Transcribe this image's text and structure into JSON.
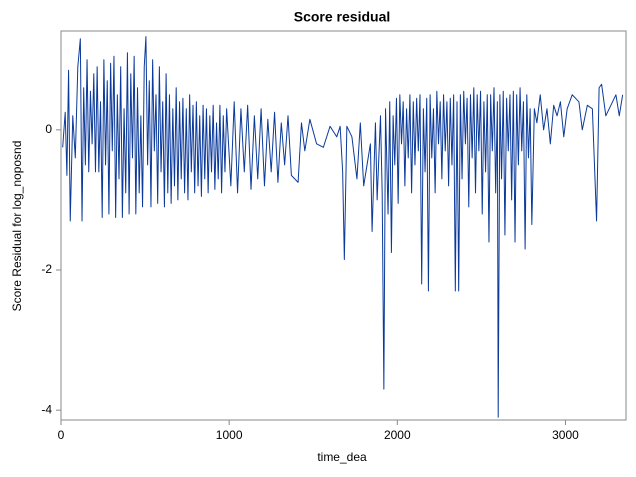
{
  "chart_data": {
    "type": "line",
    "title": "Score residual",
    "x_label": "time_dea",
    "y_label": "Score Residual for log_noposnd",
    "xlim": [
      0,
      3360
    ],
    "ylim": [
      -4.14,
      1.41
    ],
    "xticks": [
      0,
      1000,
      2000,
      3000
    ],
    "yticks": [
      -4,
      -2,
      0
    ],
    "grid": false,
    "series": [
      {
        "name": "Score Residual for log_noposnd",
        "color": "#0b3a9b",
        "x": [
          10,
          25,
          35,
          45,
          55,
          70,
          85,
          100,
          115,
          125,
          135,
          145,
          155,
          165,
          175,
          185,
          195,
          205,
          215,
          225,
          235,
          245,
          255,
          265,
          275,
          285,
          295,
          305,
          315,
          325,
          335,
          345,
          355,
          365,
          375,
          385,
          395,
          405,
          415,
          425,
          435,
          445,
          455,
          465,
          475,
          485,
          495,
          505,
          515,
          525,
          535,
          545,
          555,
          565,
          575,
          585,
          595,
          605,
          615,
          625,
          635,
          645,
          655,
          665,
          675,
          685,
          695,
          705,
          715,
          725,
          735,
          745,
          755,
          765,
          775,
          785,
          795,
          805,
          815,
          825,
          835,
          845,
          855,
          865,
          875,
          885,
          895,
          905,
          915,
          925,
          935,
          945,
          955,
          965,
          975,
          985,
          1010,
          1030,
          1050,
          1070,
          1090,
          1110,
          1130,
          1150,
          1170,
          1190,
          1210,
          1230,
          1250,
          1270,
          1290,
          1310,
          1330,
          1350,
          1370,
          1390,
          1410,
          1430,
          1450,
          1480,
          1520,
          1560,
          1600,
          1640,
          1660,
          1675,
          1685,
          1700,
          1730,
          1760,
          1780,
          1800,
          1820,
          1840,
          1850,
          1870,
          1880,
          1900,
          1910,
          1920,
          1930,
          1945,
          1955,
          1965,
          1975,
          1985,
          1995,
          2005,
          2015,
          2025,
          2035,
          2045,
          2055,
          2065,
          2075,
          2085,
          2095,
          2105,
          2115,
          2125,
          2135,
          2145,
          2155,
          2165,
          2175,
          2185,
          2195,
          2205,
          2215,
          2225,
          2235,
          2245,
          2255,
          2265,
          2275,
          2285,
          2295,
          2305,
          2315,
          2325,
          2335,
          2345,
          2355,
          2365,
          2375,
          2385,
          2395,
          2405,
          2415,
          2425,
          2435,
          2445,
          2455,
          2465,
          2475,
          2485,
          2495,
          2505,
          2515,
          2525,
          2535,
          2545,
          2555,
          2565,
          2575,
          2585,
          2595,
          2600,
          2610,
          2620,
          2630,
          2640,
          2650,
          2660,
          2670,
          2680,
          2690,
          2700,
          2710,
          2720,
          2730,
          2740,
          2750,
          2760,
          2770,
          2780,
          2790,
          2800,
          2815,
          2830,
          2850,
          2870,
          2890,
          2910,
          2930,
          2950,
          2970,
          2990,
          3010,
          3040,
          3080,
          3100,
          3130,
          3160,
          3185,
          3200,
          3215,
          3240,
          3300,
          3320,
          3340
        ],
        "values": [
          -0.25,
          0.25,
          -0.65,
          0.85,
          -1.3,
          0.2,
          -0.4,
          0.9,
          1.3,
          -1.3,
          0.6,
          -0.5,
          1.0,
          -0.6,
          0.55,
          -0.2,
          0.8,
          -0.6,
          0.9,
          -0.6,
          0.4,
          -1.25,
          1.0,
          -0.5,
          0.7,
          -1.2,
          0.95,
          -0.3,
          1.05,
          -1.25,
          0.5,
          -0.7,
          0.9,
          -1.25,
          0.3,
          -0.9,
          1.1,
          -1.2,
          0.8,
          -0.4,
          1.05,
          -1.2,
          0.6,
          -0.9,
          0.2,
          -1.1,
          0.9,
          1.33,
          -0.5,
          0.7,
          -1.1,
          1.0,
          -0.3,
          0.5,
          -1.05,
          0.9,
          -0.6,
          0.4,
          -1.1,
          0.8,
          -0.9,
          0.5,
          -1.05,
          0.3,
          -0.8,
          0.6,
          -1.0,
          0.4,
          -0.7,
          0.45,
          -0.9,
          0.3,
          -1.0,
          0.5,
          -0.6,
          0.35,
          -0.9,
          0.4,
          -0.8,
          0.2,
          -0.95,
          0.35,
          -0.7,
          0.3,
          -0.9,
          0.2,
          -0.6,
          0.35,
          -0.85,
          0.1,
          -0.7,
          0.35,
          -0.9,
          0.2,
          -0.6,
          0.3,
          -0.8,
          0.4,
          -0.9,
          0.3,
          -0.6,
          0.35,
          -0.85,
          0.2,
          -0.7,
          0.3,
          -0.8,
          0.15,
          -0.6,
          0.25,
          -0.75,
          0.1,
          -0.5,
          0.2,
          -0.65,
          -0.7,
          -0.75,
          0.1,
          -0.3,
          0.15,
          -0.2,
          -0.25,
          0.05,
          -0.1,
          0.05,
          -0.6,
          -1.85,
          0.05,
          -0.1,
          -0.7,
          0.1,
          -0.8,
          -0.5,
          -0.2,
          -1.45,
          0.1,
          -1.0,
          0.2,
          -0.9,
          -3.7,
          0.3,
          -1.2,
          0.4,
          -1.75,
          0.2,
          -0.5,
          0.45,
          -1.05,
          0.5,
          -0.2,
          0.4,
          -0.8,
          0.3,
          -0.4,
          0.5,
          -0.9,
          0.4,
          -0.5,
          0.45,
          -0.3,
          0.5,
          -2.2,
          0.3,
          -0.6,
          0.45,
          -2.3,
          0.5,
          -0.4,
          0.3,
          -0.9,
          0.55,
          -0.2,
          0.4,
          -0.7,
          0.5,
          -0.3,
          0.4,
          -0.8,
          0.45,
          -0.5,
          0.5,
          -2.3,
          0.4,
          -2.3,
          0.5,
          -0.7,
          0.55,
          -0.2,
          0.45,
          -1.1,
          0.5,
          -0.4,
          0.6,
          -0.9,
          0.5,
          -0.3,
          0.55,
          -1.2,
          0.4,
          -0.6,
          0.5,
          -1.6,
          0.5,
          -0.3,
          0.6,
          -0.9,
          0.4,
          -4.1,
          0.5,
          -0.7,
          0.55,
          -1.5,
          0.45,
          -0.3,
          0.5,
          -1.0,
          0.55,
          -1.6,
          0.5,
          -0.5,
          0.6,
          -0.3,
          0.4,
          -1.7,
          0.5,
          -0.4,
          0.3,
          -1.35,
          0.3,
          0.1,
          0.5,
          0.0,
          0.3,
          -0.2,
          0.35,
          0.2,
          0.4,
          -0.1,
          0.3,
          0.5,
          0.4,
          0.0,
          0.35,
          0.3,
          -1.3,
          0.6,
          0.65,
          0.2,
          0.5,
          0.2,
          0.5
        ]
      }
    ]
  }
}
